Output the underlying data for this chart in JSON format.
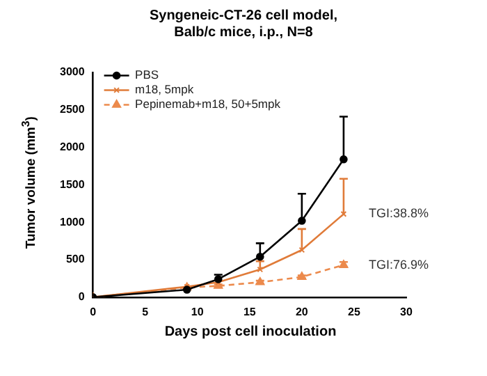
{
  "chart_data": {
    "type": "line",
    "title": "Syngeneic-CT-26 cell model,\nBalb/c mice, i.p., N=8",
    "xlabel": "Days post cell inoculation",
    "ylabel": "Tumor volume (mm$^{3}$)",
    "x": [
      0,
      9,
      12,
      16,
      20,
      24
    ],
    "series": [
      {
        "name": "PBS",
        "color": "#000000",
        "marker": "circle",
        "line_style": "solid",
        "values": [
          0,
          100,
          240,
          540,
          1020,
          1840
        ],
        "errors": [
          null,
          null,
          [
            240,
            300
          ],
          [
            540,
            720
          ],
          [
            1020,
            1380
          ],
          [
            1840,
            2410
          ]
        ]
      },
      {
        "name": "m18, 5mpk",
        "color": "#e07b39",
        "marker": "cross",
        "line_style": "solid",
        "values": [
          0,
          140,
          200,
          370,
          630,
          1110
        ],
        "errors": [
          null,
          null,
          null,
          [
            370,
            480
          ],
          [
            630,
            910
          ],
          [
            1110,
            1580
          ]
        ]
      },
      {
        "name": "Pepinemab+m18, 50+5mpk",
        "color": "#ec8a4c",
        "marker": "triangle",
        "line_style": "dashed",
        "values": [
          0,
          130,
          150,
          200,
          270,
          430
        ],
        "errors": [
          null,
          null,
          [
            130,
            170
          ],
          [
            180,
            220
          ],
          [
            250,
            290
          ],
          [
            400,
            470
          ]
        ]
      }
    ],
    "xlim": [
      0,
      30
    ],
    "xticks": [
      0,
      5,
      10,
      15,
      20,
      25,
      30
    ],
    "ylim": [
      0,
      3000
    ],
    "yticks": [
      0,
      500,
      1000,
      1500,
      2000,
      2500,
      3000
    ],
    "grid": false,
    "legend": "top left",
    "annotations": [
      {
        "text": "TGI:38.8%",
        "x": 24,
        "y": 1110
      },
      {
        "text": "TGI:76.9%",
        "x": 24,
        "y": 430
      }
    ]
  }
}
